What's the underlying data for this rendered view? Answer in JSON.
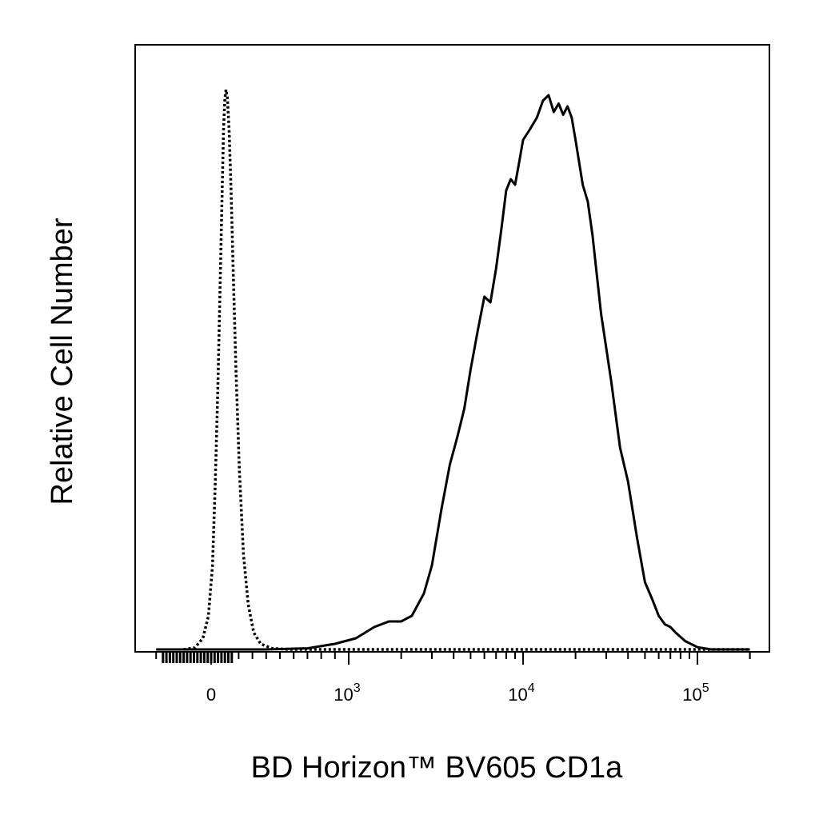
{
  "chart_data": {
    "type": "line",
    "title": "",
    "xlabel": "BD Horizon™ BV605 CD1a",
    "ylabel": "Relative Cell Number",
    "x_scale": "biexponential",
    "xlim": [
      -400,
      200000
    ],
    "ylim": [
      0,
      1
    ],
    "grid": false,
    "legend": "none",
    "x_ticks": [
      {
        "value": 0,
        "base": "0",
        "exp": ""
      },
      {
        "value": 1000,
        "base": "10",
        "exp": "3"
      },
      {
        "value": 10000,
        "base": "10",
        "exp": "4"
      },
      {
        "value": 100000,
        "base": "10",
        "exp": "5"
      }
    ],
    "series": [
      {
        "style": "dotted",
        "color": "#000000",
        "points": [
          [
            -200,
            0
          ],
          [
            -120,
            0.003
          ],
          [
            -60,
            0.02
          ],
          [
            -20,
            0.06
          ],
          [
            10,
            0.15
          ],
          [
            30,
            0.3
          ],
          [
            50,
            0.48
          ],
          [
            65,
            0.65
          ],
          [
            80,
            0.82
          ],
          [
            90,
            0.93
          ],
          [
            100,
            0.985
          ],
          [
            108,
            1.0
          ],
          [
            118,
            0.985
          ],
          [
            130,
            0.93
          ],
          [
            145,
            0.82
          ],
          [
            160,
            0.68
          ],
          [
            180,
            0.5
          ],
          [
            205,
            0.32
          ],
          [
            235,
            0.17
          ],
          [
            270,
            0.08
          ],
          [
            310,
            0.03
          ],
          [
            360,
            0.01
          ],
          [
            440,
            0.002
          ],
          [
            560,
            0
          ],
          [
            1000,
            0
          ],
          [
            10000,
            0
          ],
          [
            100000,
            0
          ],
          [
            200000,
            0
          ]
        ]
      },
      {
        "style": "solid",
        "color": "#000000",
        "points": [
          [
            -400,
            0
          ],
          [
            400,
            0
          ],
          [
            700,
            0.002
          ],
          [
            900,
            0.01
          ],
          [
            1100,
            0.02
          ],
          [
            1400,
            0.04
          ],
          [
            1700,
            0.05
          ],
          [
            2000,
            0.05
          ],
          [
            2300,
            0.06
          ],
          [
            2700,
            0.1
          ],
          [
            3000,
            0.15
          ],
          [
            3400,
            0.25
          ],
          [
            3800,
            0.33
          ],
          [
            4200,
            0.38
          ],
          [
            4600,
            0.43
          ],
          [
            5000,
            0.5
          ],
          [
            5500,
            0.57
          ],
          [
            6000,
            0.63
          ],
          [
            6500,
            0.62
          ],
          [
            7000,
            0.68
          ],
          [
            7500,
            0.75
          ],
          [
            8000,
            0.82
          ],
          [
            8500,
            0.84
          ],
          [
            9000,
            0.83
          ],
          [
            9500,
            0.87
          ],
          [
            10000,
            0.91
          ],
          [
            11000,
            0.93
          ],
          [
            12000,
            0.95
          ],
          [
            13000,
            0.98
          ],
          [
            14000,
            0.99
          ],
          [
            15000,
            0.96
          ],
          [
            16000,
            0.975
          ],
          [
            17000,
            0.955
          ],
          [
            18000,
            0.97
          ],
          [
            19000,
            0.95
          ],
          [
            20000,
            0.91
          ],
          [
            22000,
            0.83
          ],
          [
            23500,
            0.8
          ],
          [
            25000,
            0.74
          ],
          [
            28000,
            0.6
          ],
          [
            32000,
            0.48
          ],
          [
            36000,
            0.36
          ],
          [
            40000,
            0.3
          ],
          [
            45000,
            0.2
          ],
          [
            50000,
            0.12
          ],
          [
            55000,
            0.09
          ],
          [
            60000,
            0.06
          ],
          [
            65000,
            0.045
          ],
          [
            70000,
            0.04
          ],
          [
            75000,
            0.03
          ],
          [
            85000,
            0.015
          ],
          [
            100000,
            0.004
          ],
          [
            120000,
            0
          ],
          [
            200000,
            0
          ]
        ]
      }
    ]
  }
}
